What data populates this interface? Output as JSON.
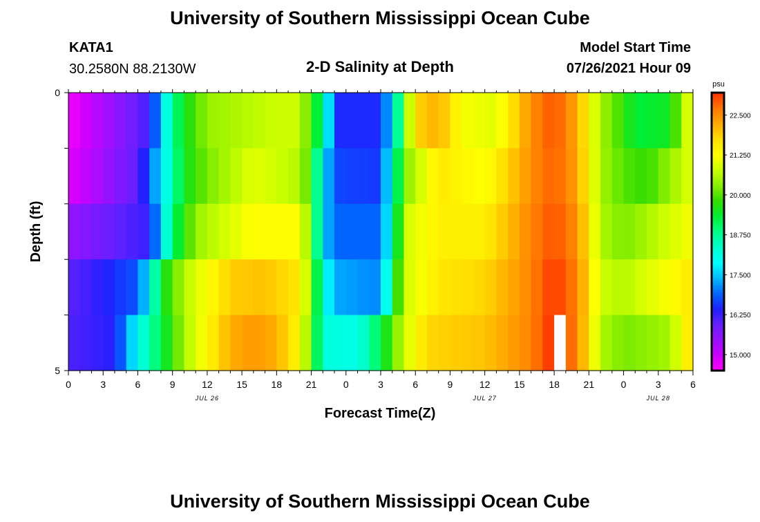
{
  "header": {
    "title": "University of Southern Mississippi Ocean Cube",
    "station": "KATA1",
    "coords": "30.2580N  88.2130W",
    "model_start_label": "Model Start Time",
    "model_start_value": "07/26/2021 Hour 09",
    "footer_title": "University of Southern Mississippi Ocean Cube"
  },
  "colors": {
    "ramp": [
      "#ff00ff",
      "#cc00ff",
      "#9911ff",
      "#6620ff",
      "#2020ff",
      "#0066ff",
      "#00bbff",
      "#00ffff",
      "#00ffcc",
      "#00ff88",
      "#00ee33",
      "#33dd00",
      "#88ee00",
      "#ccff00",
      "#ffff00",
      "#ffdd00",
      "#ffaa00",
      "#ff7700",
      "#ff3300"
    ],
    "missing": "#ffffff"
  },
  "chart_data": {
    "type": "heatmap",
    "title": "2-D Salinity at Depth",
    "xlabel": "Forecast Time(Z)",
    "ylabel": "Depth (ft)",
    "y_ticks": [
      "0",
      "5"
    ],
    "ylim": [
      0,
      5
    ],
    "x_ticks": [
      "0",
      "3",
      "6",
      "9",
      "12",
      "15",
      "18",
      "21",
      "0",
      "3",
      "6",
      "9",
      "12",
      "15",
      "18",
      "21",
      "0",
      "3",
      "6"
    ],
    "date_labels": [
      {
        "label": "JUL 26",
        "hour_index": 12
      },
      {
        "label": "JUL 27",
        "hour_index": 36
      },
      {
        "label": "JUL 28",
        "hour_index": 51
      }
    ],
    "hours": 54,
    "depth_rows": 5,
    "colorbar": {
      "unit": "psu",
      "min": 14.5,
      "max": 23.2,
      "ticks": [
        "15.000",
        "16.250",
        "17.500",
        "18.750",
        "20.000",
        "21.250",
        "22.500"
      ]
    },
    "missing_cells": [
      {
        "row": 4,
        "hour": 42
      }
    ],
    "rows": [
      {
        "depth": "0-1",
        "knots": [
          [
            0,
            14.6
          ],
          [
            7,
            16.2
          ],
          [
            9,
            18.8
          ],
          [
            10,
            19.5
          ],
          [
            12,
            20.4
          ],
          [
            18,
            20.8
          ],
          [
            20,
            20.8
          ],
          [
            21,
            19.8
          ],
          [
            22,
            18.8
          ],
          [
            23,
            16.5
          ],
          [
            27,
            16.5
          ],
          [
            28,
            17.7
          ],
          [
            29,
            19.8
          ],
          [
            30,
            21.8
          ],
          [
            32,
            22.2
          ],
          [
            34,
            21.2
          ],
          [
            37,
            21.0
          ],
          [
            40,
            22.5
          ],
          [
            42,
            23.0
          ],
          [
            44,
            22.2
          ],
          [
            46,
            20.5
          ],
          [
            48,
            19.8
          ],
          [
            49,
            19.3
          ],
          [
            52,
            19.5
          ],
          [
            54,
            21.3
          ]
        ]
      },
      {
        "depth": "1-2",
        "knots": [
          [
            0,
            14.8
          ],
          [
            6,
            16.0
          ],
          [
            8,
            17.7
          ],
          [
            10,
            19.5
          ],
          [
            12,
            20.2
          ],
          [
            16,
            21.0
          ],
          [
            20,
            20.6
          ],
          [
            21,
            19.8
          ],
          [
            22,
            17.8
          ],
          [
            23,
            16.7
          ],
          [
            27,
            16.6
          ],
          [
            28,
            18.2
          ],
          [
            29,
            20.2
          ],
          [
            32,
            21.6
          ],
          [
            36,
            21.2
          ],
          [
            40,
            22.5
          ],
          [
            42,
            22.9
          ],
          [
            44,
            22.3
          ],
          [
            46,
            20.5
          ],
          [
            48,
            20.0
          ],
          [
            50,
            19.8
          ],
          [
            54,
            21.0
          ]
        ]
      },
      {
        "depth": "2-3",
        "knots": [
          [
            0,
            15.5
          ],
          [
            7,
            16.3
          ],
          [
            8,
            17.6
          ],
          [
            9,
            19.0
          ],
          [
            11,
            20.4
          ],
          [
            16,
            21.3
          ],
          [
            20,
            21.3
          ],
          [
            21,
            20.0
          ],
          [
            22,
            17.6
          ],
          [
            23,
            16.9
          ],
          [
            27,
            16.9
          ],
          [
            28,
            18.3
          ],
          [
            29,
            20.8
          ],
          [
            32,
            21.5
          ],
          [
            36,
            21.5
          ],
          [
            40,
            22.6
          ],
          [
            42,
            23.0
          ],
          [
            44,
            22.5
          ],
          [
            46,
            20.6
          ],
          [
            48,
            20.2
          ],
          [
            54,
            21.2
          ]
        ]
      },
      {
        "depth": "3-4",
        "knots": [
          [
            0,
            16.0
          ],
          [
            6,
            16.8
          ],
          [
            7,
            17.9
          ],
          [
            8,
            19.4
          ],
          [
            10,
            20.6
          ],
          [
            14,
            21.9
          ],
          [
            17,
            22.0
          ],
          [
            20,
            21.6
          ],
          [
            21,
            20.2
          ],
          [
            22,
            18.2
          ],
          [
            23,
            17.3
          ],
          [
            27,
            17.1
          ],
          [
            28,
            19.0
          ],
          [
            29,
            20.8
          ],
          [
            32,
            21.6
          ],
          [
            36,
            21.8
          ],
          [
            40,
            22.6
          ],
          [
            42,
            23.2
          ],
          [
            44,
            22.6
          ],
          [
            46,
            20.8
          ],
          [
            48,
            20.6
          ],
          [
            54,
            21.6
          ]
        ]
      },
      {
        "depth": "4-5",
        "knots": [
          [
            0,
            16.1
          ],
          [
            4,
            16.4
          ],
          [
            6,
            18.0
          ],
          [
            8,
            19.2
          ],
          [
            10,
            20.5
          ],
          [
            14,
            22.2
          ],
          [
            16,
            22.4
          ],
          [
            18,
            22.2
          ],
          [
            20,
            21.3
          ],
          [
            21,
            20.0
          ],
          [
            22,
            18.2
          ],
          [
            25,
            18.1
          ],
          [
            27,
            19.2
          ],
          [
            29,
            20.8
          ],
          [
            31,
            21.8
          ],
          [
            36,
            22.0
          ],
          [
            40,
            22.6
          ],
          [
            42,
            23.3
          ],
          [
            44,
            22.6
          ],
          [
            46,
            20.6
          ],
          [
            48,
            20.2
          ],
          [
            52,
            20.5
          ],
          [
            54,
            21.8
          ]
        ]
      }
    ]
  }
}
